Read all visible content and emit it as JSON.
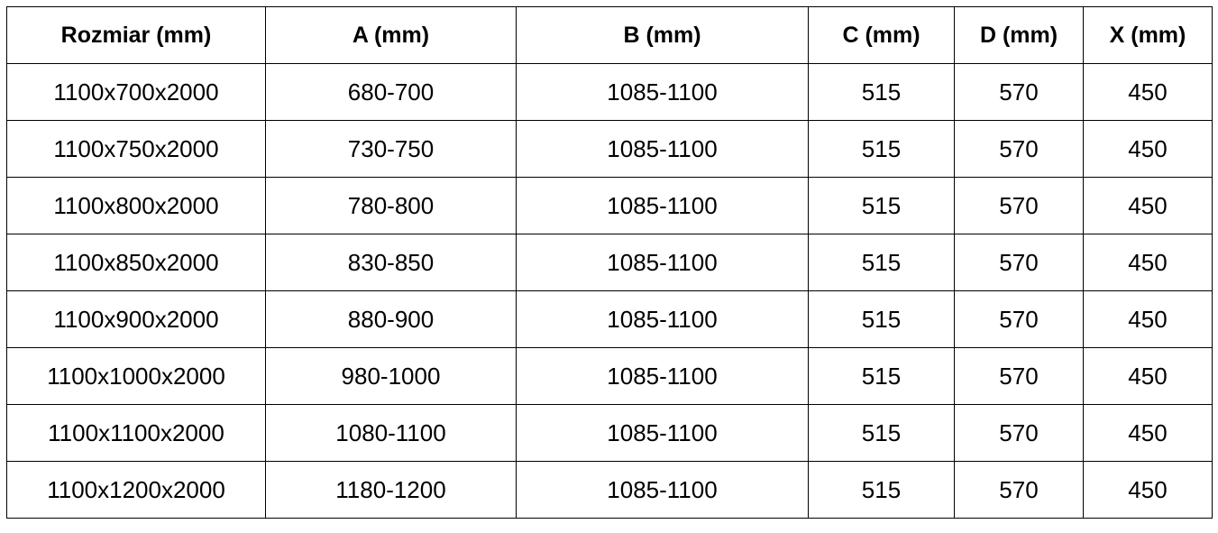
{
  "table": {
    "header": [
      "Rozmiar (mm)",
      "A (mm)",
      "B (mm)",
      "C (mm)",
      "D (mm)",
      "X (mm)"
    ],
    "rows": [
      [
        "1100x700x2000",
        "680-700",
        "1085-1100",
        "515",
        "570",
        "450"
      ],
      [
        "1100x750x2000",
        "730-750",
        "1085-1100",
        "515",
        "570",
        "450"
      ],
      [
        "1100x800x2000",
        "780-800",
        "1085-1100",
        "515",
        "570",
        "450"
      ],
      [
        "1100x850x2000",
        "830-850",
        "1085-1100",
        "515",
        "570",
        "450"
      ],
      [
        "1100x900x2000",
        "880-900",
        "1085-1100",
        "515",
        "570",
        "450"
      ],
      [
        "1100x1000x2000",
        "980-1000",
        "1085-1100",
        "515",
        "570",
        "450"
      ],
      [
        "1100x1100x2000",
        "1080-1100",
        "1085-1100",
        "515",
        "570",
        "450"
      ],
      [
        "1100x1200x2000",
        "1180-1200",
        "1085-1100",
        "515",
        "570",
        "450"
      ]
    ]
  }
}
